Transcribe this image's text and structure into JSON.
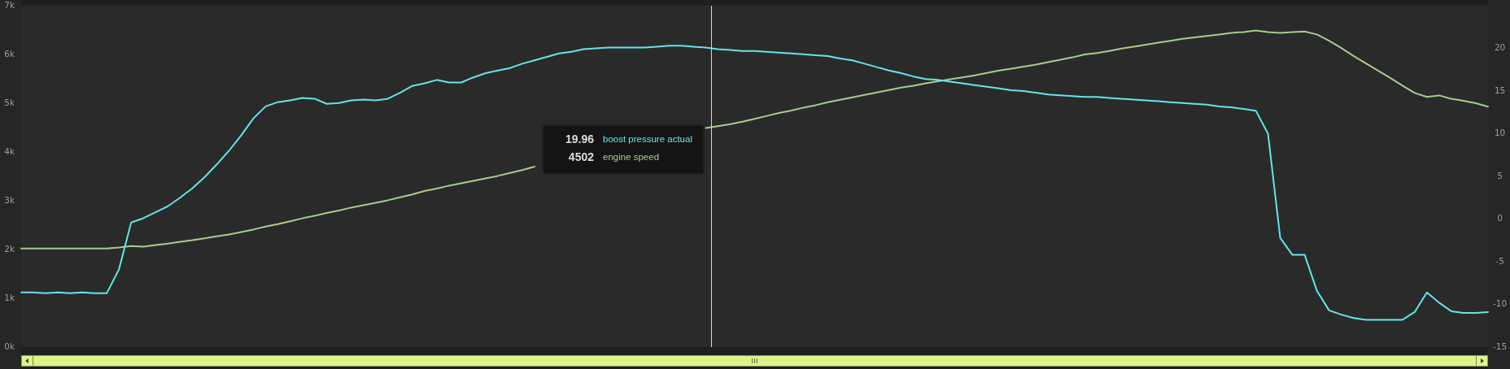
{
  "chart_data": {
    "type": "line",
    "categories": [
      null,
      null,
      null,
      null,
      null,
      null,
      null,
      null,
      null,
      null,
      null,
      null,
      null,
      null,
      null,
      null,
      null,
      null,
      null,
      null,
      null,
      null,
      null,
      null,
      null,
      null,
      null,
      null,
      null,
      null,
      null,
      null,
      null,
      null,
      null,
      null,
      null,
      null,
      null,
      null,
      null,
      null,
      null,
      null,
      null,
      null,
      null,
      null,
      null,
      null,
      null,
      null,
      null,
      null,
      null,
      null,
      null,
      null,
      null,
      null,
      null,
      null,
      null,
      null,
      null,
      null,
      null,
      null,
      null,
      null,
      null,
      null,
      null,
      null,
      null,
      null,
      null,
      null,
      null,
      null,
      null,
      null,
      null,
      null,
      null,
      null,
      null,
      null,
      null,
      null,
      null,
      null,
      null,
      null,
      null,
      null,
      null,
      null,
      null,
      null,
      null,
      null,
      null,
      null,
      null,
      null,
      null,
      null,
      null,
      null,
      null,
      null,
      null,
      null,
      null,
      null,
      null,
      null,
      null,
      null,
      null
    ],
    "series": [
      {
        "name": "boost pressure actual",
        "color": "#64e4ee",
        "axis": "y2",
        "values": [
          -8.6,
          -8.6,
          -8.7,
          -8.6,
          -8.7,
          -8.6,
          -8.7,
          -8.7,
          -5.9,
          -0.4,
          0.1,
          0.8,
          1.5,
          2.5,
          3.6,
          4.9,
          6.4,
          8.0,
          9.8,
          11.8,
          13.2,
          13.7,
          13.9,
          14.2,
          14.1,
          13.5,
          13.6,
          13.9,
          14.0,
          13.9,
          14.1,
          14.8,
          15.6,
          15.9,
          16.3,
          16.0,
          16.0,
          16.6,
          17.1,
          17.4,
          17.7,
          18.2,
          18.6,
          19.0,
          19.4,
          19.6,
          19.9,
          20.0,
          20.1,
          20.1,
          20.1,
          20.1,
          20.2,
          20.3,
          20.3,
          20.2,
          20.1,
          19.9,
          19.8,
          19.7,
          19.7,
          19.6,
          19.5,
          19.4,
          19.3,
          19.2,
          19.1,
          18.8,
          18.6,
          18.2,
          17.8,
          17.4,
          17.1,
          16.7,
          16.4,
          16.3,
          16.1,
          15.9,
          15.7,
          15.5,
          15.3,
          15.1,
          15.0,
          14.8,
          14.6,
          14.5,
          14.4,
          14.3,
          14.3,
          14.2,
          14.1,
          14.0,
          13.9,
          13.8,
          13.7,
          13.6,
          13.5,
          13.4,
          13.2,
          13.1,
          12.9,
          12.7,
          10.0,
          -2.2,
          -4.2,
          -4.2,
          -8.4,
          -10.7,
          -11.2,
          -11.6,
          -11.8,
          -11.8,
          -11.8,
          -11.8,
          -10.9,
          -8.6,
          -9.8,
          -10.8,
          -11.0,
          -11.0,
          -10.9
        ]
      },
      {
        "name": "engine speed",
        "color": "#a8cc8c",
        "values": [
          2020,
          2020,
          2020,
          2020,
          2020,
          2020,
          2020,
          2020,
          2040,
          2070,
          2060,
          2090,
          2120,
          2160,
          2190,
          2230,
          2270,
          2310,
          2360,
          2410,
          2470,
          2520,
          2580,
          2640,
          2690,
          2750,
          2800,
          2860,
          2910,
          2960,
          3010,
          3070,
          3130,
          3200,
          3250,
          3310,
          3360,
          3410,
          3460,
          3510,
          3570,
          3630,
          3700,
          null,
          null,
          null,
          null,
          null,
          null,
          null,
          null,
          null,
          null,
          null,
          null,
          null,
          4490,
          4530,
          4570,
          4620,
          4680,
          4740,
          4800,
          4850,
          4910,
          4960,
          5020,
          5070,
          5120,
          5170,
          5220,
          5270,
          5320,
          5360,
          5410,
          5450,
          5490,
          5530,
          5570,
          5620,
          5670,
          5710,
          5750,
          5790,
          5840,
          5890,
          5940,
          6000,
          6030,
          6070,
          6120,
          6160,
          6200,
          6240,
          6280,
          6320,
          6350,
          6380,
          6410,
          6440,
          6460,
          6490,
          6460,
          6440,
          6460,
          6470,
          6410,
          6280,
          6130,
          5970,
          5820,
          5670,
          5520,
          5360,
          5210,
          5130,
          5160,
          5090,
          5050,
          5000,
          4930
        ]
      }
    ],
    "ylim": [
      0,
      7000
    ],
    "yticks": [
      {
        "value": 0,
        "label": "0k"
      },
      {
        "value": 1000,
        "label": "1k"
      },
      {
        "value": 2000,
        "label": "2k"
      },
      {
        "value": 3000,
        "label": "3k"
      },
      {
        "value": 4000,
        "label": "4k"
      },
      {
        "value": 5000,
        "label": "5k"
      },
      {
        "value": 6000,
        "label": "6k"
      },
      {
        "value": 7000,
        "label": "7k"
      }
    ],
    "y2lim": [
      -15,
      25
    ],
    "y2ticks": [
      -15,
      -10,
      -5,
      0,
      5,
      10,
      15,
      20
    ],
    "annotations": [
      "19.96",
      "4502"
    ]
  }
}
